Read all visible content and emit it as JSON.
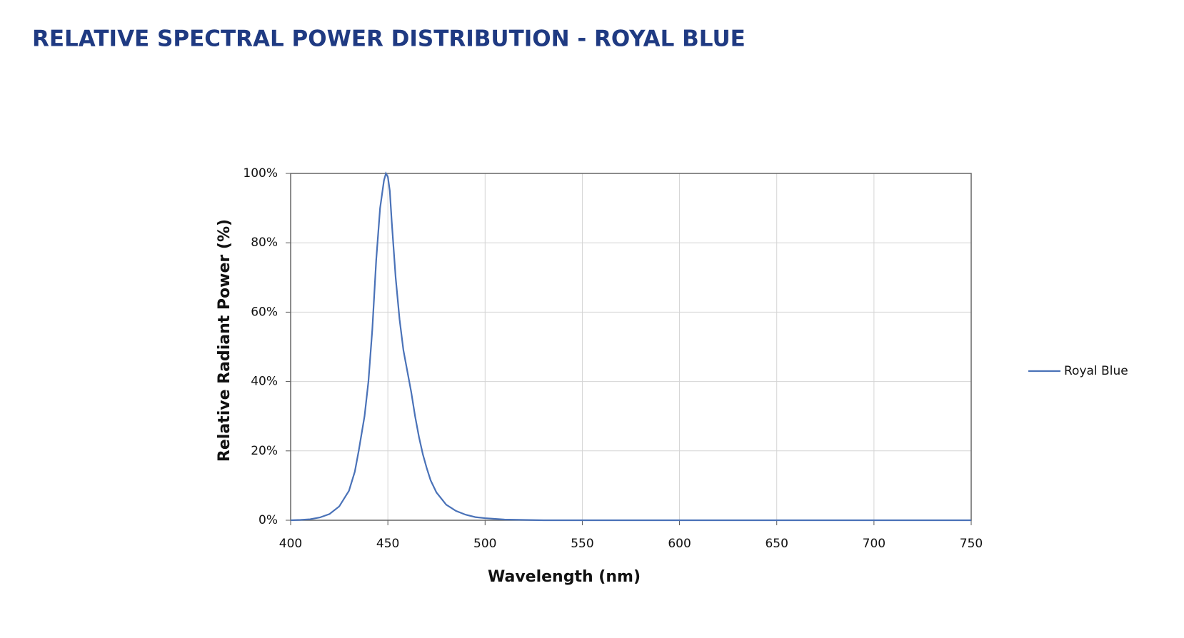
{
  "chart_data": {
    "type": "line",
    "title": "RELATIVE SPECTRAL POWER DISTRIBUTION - ROYAL BLUE",
    "x_label": "Wavelength (nm)",
    "y_label": "Relative Radiant Power (%)",
    "x": [
      400,
      405,
      410,
      415,
      420,
      425,
      430,
      433,
      435,
      438,
      440,
      442,
      444,
      446,
      448,
      449,
      450,
      451,
      452,
      453,
      454,
      456,
      458,
      460,
      462,
      464,
      466,
      468,
      470,
      472,
      475,
      480,
      485,
      490,
      495,
      500,
      510,
      520,
      530,
      550,
      600,
      650,
      700,
      750
    ],
    "series": [
      {
        "name": "Royal Blue",
        "color": "#4a72b8",
        "values": [
          0,
          0.1,
          0.3,
          0.8,
          1.8,
          4,
          8.5,
          14,
          20,
          30,
          40,
          55,
          75,
          90,
          98,
          100,
          99,
          95,
          86,
          78,
          70,
          58,
          49,
          43,
          37,
          30,
          24,
          19,
          15,
          11.5,
          8,
          4.5,
          2.7,
          1.6,
          0.9,
          0.6,
          0.2,
          0.1,
          0,
          0,
          0,
          0,
          0,
          0
        ]
      }
    ],
    "xlim": [
      400,
      750
    ],
    "xticks": [
      400,
      450,
      500,
      550,
      600,
      650,
      700,
      750
    ],
    "ylim": [
      0,
      100
    ],
    "yticks": [
      {
        "value": 0,
        "label": "0%"
      },
      {
        "value": 20,
        "label": "20%"
      },
      {
        "value": 40,
        "label": "40%"
      },
      {
        "value": 60,
        "label": "60%"
      },
      {
        "value": 80,
        "label": "80%"
      },
      {
        "value": 100,
        "label": "100%"
      }
    ],
    "grid": true,
    "legend": "right"
  }
}
